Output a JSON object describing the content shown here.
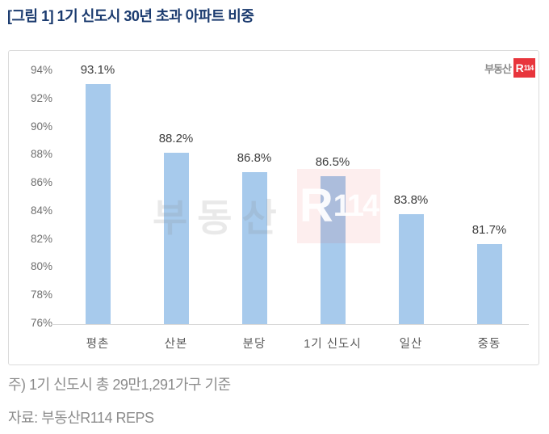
{
  "title": "[그림 1] 1기 신도시 30년 초과 아파트 비중",
  "logo": {
    "prefix": "부동산",
    "badge_r": "R",
    "badge_num": "114"
  },
  "watermark": {
    "text": "부동산",
    "badge_r": "R",
    "badge_num": "114"
  },
  "notes": [
    "주) 1기 신도시 총 29만1,291가구 기준",
    "자료: 부동산R114 REPS"
  ],
  "colors": {
    "bar": "#A7CAEC",
    "brand_red": "#E8353C",
    "title_blue": "#1B3B6F",
    "axis_line": "#D9D9D9",
    "tick_text": "#6F6F6F",
    "value_text": "#3B3B3B"
  },
  "chart_data": {
    "type": "bar",
    "title": "[그림 1] 1기 신도시 30년 초과 아파트 비중",
    "categories": [
      "평촌",
      "산본",
      "분당",
      "1기 신도시",
      "일산",
      "중동"
    ],
    "values": [
      93.1,
      88.2,
      86.8,
      86.5,
      83.8,
      81.7
    ],
    "value_labels": [
      "93.1%",
      "88.2%",
      "86.8%",
      "86.5%",
      "83.8%",
      "81.7%"
    ],
    "xlabel": "",
    "ylabel": "",
    "ylim": [
      76,
      94
    ],
    "y_tick_step": 2,
    "y_tick_labels": [
      "94%",
      "92%",
      "90%",
      "88%",
      "86%",
      "84%",
      "82%",
      "80%",
      "78%",
      "76%"
    ],
    "grid": false,
    "legend": false
  }
}
